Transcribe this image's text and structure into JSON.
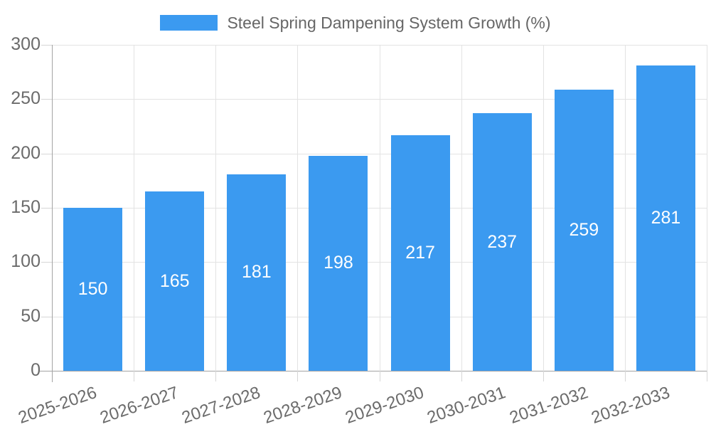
{
  "chart_data": {
    "type": "bar",
    "title": "Steel Spring Dampening System Growth (%)",
    "categories": [
      "2025-2026",
      "2026-2027",
      "2027-2028",
      "2028-2029",
      "2029-2030",
      "2030-2031",
      "2031-2032",
      "2032-2033"
    ],
    "values": [
      150,
      165,
      181,
      198,
      217,
      237,
      259,
      281
    ],
    "value_labels": [
      "150",
      "165",
      "181",
      "198",
      "217",
      "237",
      "259",
      "281"
    ],
    "xlabel": "",
    "ylabel": "",
    "ylim": [
      0,
      300
    ],
    "yticks": [
      0,
      50,
      100,
      150,
      200,
      250,
      300
    ],
    "grid": true,
    "legend_position": "top",
    "colors": {
      "bar": "#3b9af0",
      "bar_value_text": "#ffffff",
      "legend_text": "#666666",
      "tick_text": "#6b6b6b",
      "gridline": "#e3e3e3",
      "axis_line": "#a3a3a3",
      "background": "#ffffff"
    }
  }
}
